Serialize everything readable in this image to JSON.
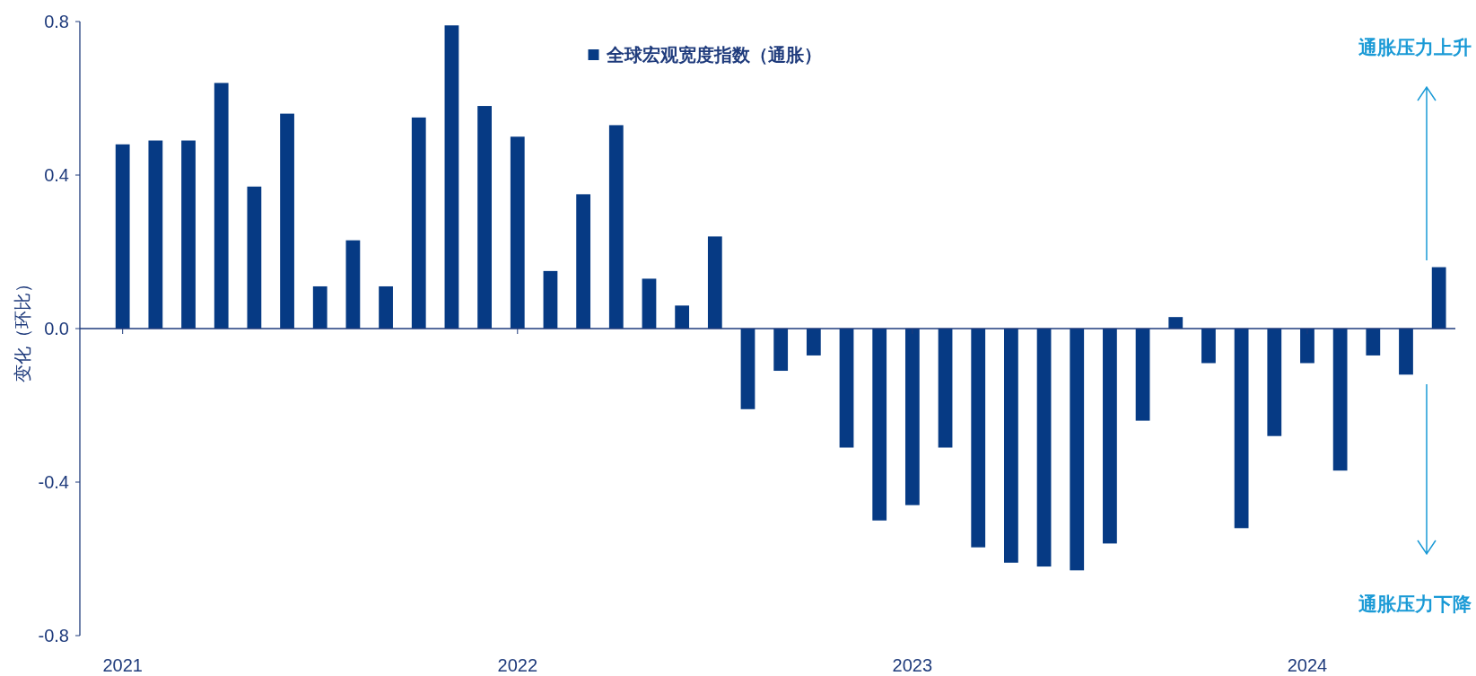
{
  "chart_data": {
    "type": "bar",
    "ylabel": "变化（环比）",
    "legend": "top",
    "series": [
      {
        "name": "全球宏观宽度指数（通胀）",
        "color": "#063a84",
        "values": [
          0.48,
          0.49,
          0.49,
          0.64,
          0.37,
          0.56,
          0.11,
          0.23,
          0.11,
          0.55,
          0.79,
          0.58,
          0.5,
          0.15,
          0.35,
          0.53,
          0.13,
          0.06,
          0.24,
          -0.21,
          -0.11,
          -0.07,
          -0.31,
          -0.5,
          -0.46,
          -0.31,
          -0.57,
          -0.61,
          -0.62,
          -0.63,
          -0.56,
          -0.24,
          0.03,
          -0.09,
          -0.52,
          -0.28,
          -0.09,
          -0.37,
          -0.07,
          -0.12,
          0.16
        ]
      }
    ],
    "x": [
      "2021-01",
      "2021-02",
      "2021-03",
      "2021-04",
      "2021-05",
      "2021-06",
      "2021-07",
      "2021-08",
      "2021-09",
      "2021-10",
      "2021-11",
      "2021-12",
      "2022-01",
      "2022-02",
      "2022-03",
      "2022-04",
      "2022-05",
      "2022-06",
      "2022-07",
      "2022-08",
      "2022-09",
      "2022-10",
      "2022-11",
      "2022-12",
      "2023-01",
      "2023-02",
      "2023-03",
      "2023-04",
      "2023-05",
      "2023-06",
      "2023-07",
      "2023-08",
      "2023-09",
      "2023-10",
      "2023-11",
      "2023-12",
      "2024-01",
      "2024-02",
      "2024-03",
      "2024-04",
      "2024-05"
    ],
    "xlim": [
      "2020-11-22",
      "2024-05-16"
    ],
    "xticks": [
      {
        "value": "2021-01",
        "label": "2021"
      },
      {
        "value": "2022-01",
        "label": "2022"
      },
      {
        "value": "2023-01",
        "label": "2023"
      },
      {
        "value": "2024-01",
        "label": "2024"
      }
    ],
    "ylim": [
      -0.8,
      0.8
    ],
    "ref_lines": [
      {
        "axis": "y",
        "value": 0,
        "color": "#1f3b7c"
      }
    ],
    "yticks": [
      -0.8,
      -0.4,
      {
        "value": 0,
        "label": "0.0"
      },
      0.4,
      0.8
    ],
    "annotations": [
      "通胀压力上升",
      "通胀压力下降"
    ]
  }
}
